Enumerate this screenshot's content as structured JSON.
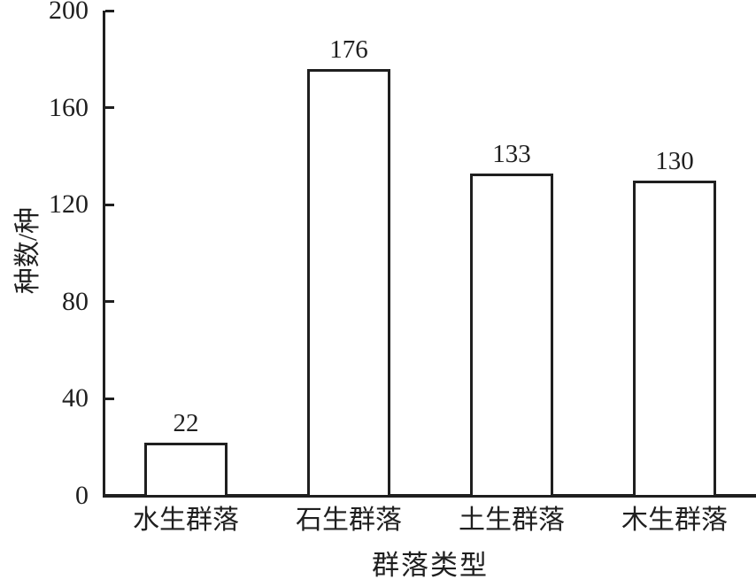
{
  "chart_data": {
    "type": "bar",
    "categories": [
      "水生群落",
      "石生群落",
      "土生群落",
      "木生群落"
    ],
    "values": [
      22,
      176,
      133,
      130
    ],
    "bar_value_labels": [
      "22",
      "176",
      "133",
      "130"
    ],
    "title": "",
    "xlabel": "群落类型",
    "ylabel": "种数/种",
    "ylim": [
      0,
      200
    ],
    "yticks": [
      0,
      40,
      80,
      120,
      160,
      200
    ],
    "grid": false,
    "legend_position": "none",
    "bar_fill_color": "#ffffff",
    "ink_color": "#1f1f1f",
    "background_color": "#ffffff"
  }
}
